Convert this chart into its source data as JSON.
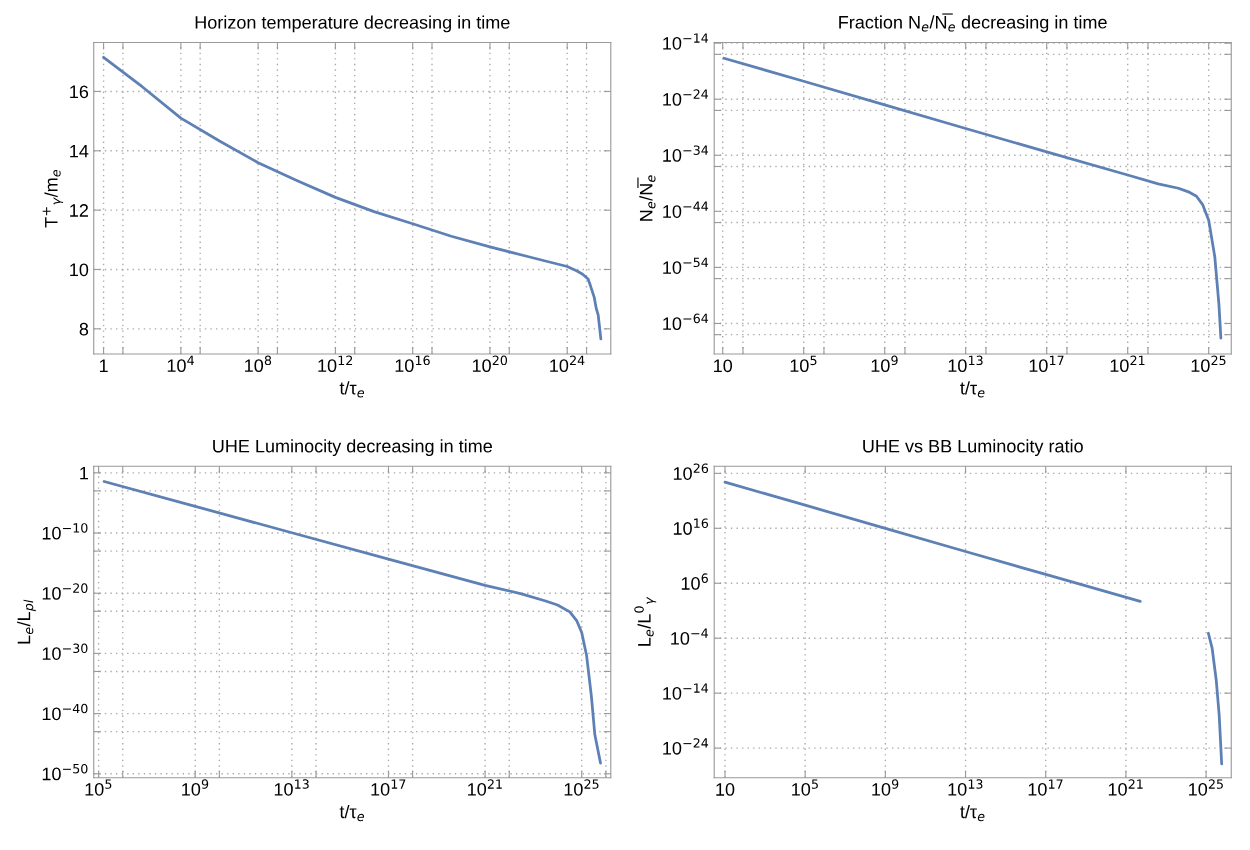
{
  "chart_data": [
    {
      "type": "line",
      "title": "Horizon temperature decreasing in time",
      "xlabel": "t/τ$_{e}$",
      "ylabel": "T$^{+}$$_{γ}$/m$_{e}$",
      "log": "x",
      "grid": true,
      "xlim": [
        0.31,
        1.8e+26
      ],
      "ylim": [
        7.15,
        17.65
      ],
      "xticks": [
        1,
        {
          "value": 10,
          "label": null
        },
        {
          "value": 10000.0,
          "label": "10$^{4}$"
        },
        {
          "value": 100000.0,
          "label": null
        },
        {
          "value": 100000000.0,
          "label": "10$^{8}$"
        },
        {
          "value": 1000000000.0,
          "label": null
        },
        {
          "value": 1000000000000.0,
          "label": "10$^{12}$"
        },
        {
          "value": 10000000000000.0,
          "label": null
        },
        {
          "value": 1e+16,
          "label": "10$^{16}$"
        },
        {
          "value": 1e+17,
          "label": null
        },
        {
          "value": 1e+20,
          "label": "10$^{20}$"
        },
        {
          "value": 1e+21,
          "label": null
        },
        {
          "value": 1e+24,
          "label": "10$^{24}$"
        },
        {
          "value": 1e+25,
          "label": null
        }
      ],
      "yticks": [
        8,
        10,
        12,
        14,
        16
      ],
      "series": [
        {
          "color": "#5e81b5",
          "x": [
            1,
            100.0,
            10000.0,
            1000000.0,
            100000000.0,
            10000000000.0,
            1000000000000.0,
            100000000000000.0,
            1e+16,
            1e+18,
            1e+20,
            1e+22,
            1e+24,
            3.2e+24,
            6.3e+24,
            1.2e+25,
            1.6e+25,
            2.5e+25,
            3.2e+25,
            4e+25,
            5.5e+25
          ],
          "values": [
            17.15,
            16.16,
            15.1,
            14.33,
            13.6,
            13.0,
            12.43,
            11.95,
            11.54,
            11.12,
            10.76,
            10.43,
            10.1,
            9.95,
            9.84,
            9.68,
            9.45,
            9.06,
            8.68,
            8.47,
            7.66
          ]
        }
      ]
    },
    {
      "type": "line",
      "title": "Fraction N$_{e}$/N̅$_{e}$ decreasing in time",
      "xlabel": "t/τ$_{e}$",
      "ylabel": "N$_{e}$/N̅$_{e}$",
      "log": "xy",
      "grid": true,
      "xlim": [
        3.8,
        1.3e+26
      ],
      "ylim": [
        3.5e-70,
        1.3e-14
      ],
      "xticks": [
        10,
        {
          "value": 100.0,
          "label": null
        },
        {
          "value": 100000.0,
          "label": "10$^{5}$"
        },
        {
          "value": 1000000.0,
          "label": null
        },
        {
          "value": 1000000000.0,
          "label": "10$^{9}$"
        },
        {
          "value": 10000000000.0,
          "label": null
        },
        {
          "value": 10000000000000.0,
          "label": "10$^{13}$"
        },
        {
          "value": 100000000000000.0,
          "label": null
        },
        {
          "value": 1e+17,
          "label": "10$^{17}$"
        },
        {
          "value": 1e+18,
          "label": null
        },
        {
          "value": 1e+21,
          "label": "10$^{21}$"
        },
        {
          "value": 1e+22,
          "label": null
        },
        {
          "value": 1e+25,
          "label": "10$^{25}$"
        }
      ],
      "yticks": [
        {
          "value": 1e-14,
          "label": "10$^{−14}$"
        },
        {
          "value": 1e-16,
          "label": null
        },
        {
          "value": 1e-24,
          "label": "10$^{−24}$"
        },
        {
          "value": 1e-26,
          "label": null
        },
        {
          "value": 1e-34,
          "label": "10$^{−34}$"
        },
        {
          "value": 1e-36,
          "label": null
        },
        {
          "value": 1e-44,
          "label": "10$^{−44}$"
        },
        {
          "value": 1e-46,
          "label": null
        },
        {
          "value": 1e-54,
          "label": "10$^{−54}$"
        },
        {
          "value": 1e-56,
          "label": null
        },
        {
          "value": 1e-64,
          "label": "10$^{−64}$"
        },
        {
          "value": 1e-66,
          "label": null
        }
      ],
      "series": [
        {
          "color": "#5e81b5",
          "x": [
            11.5,
            100000.0,
            1000000000.0,
            10000000000000.0,
            1e+17,
            1e+21,
            3.2e+22,
            3.2e+23,
            1e+24,
            2.5e+24,
            5e+24,
            1e+25,
            2e+25,
            3.2e+25,
            4e+25
          ],
          "values": [
            2e-17,
            1.6e-21,
            1e-25,
            6e-30,
            4e-34,
            3e-38,
            8e-40,
            1.3e-40,
            3e-41,
            5e-42,
            1.6e-43,
            2.5e-46,
            8e-53,
            2.5e-61,
            2.5e-67
          ]
        }
      ]
    },
    {
      "type": "line",
      "title": "UHE Luminocity decreasing in time",
      "xlabel": "t/τ$_{e}$",
      "ylabel": "L$_{e}$/L$_{pl}$",
      "log": "xy",
      "grid": true,
      "xlim": [
        63000.0,
        1.6e+26
      ],
      "ylim": [
        2.2e-51,
        12.6
      ],
      "xticks": [
        {
          "value": 100000.0,
          "label": "10$^{5}$"
        },
        {
          "value": 1000000.0,
          "label": null
        },
        {
          "value": 1000000000.0,
          "label": "10$^{9}$"
        },
        {
          "value": 10000000000.0,
          "label": null
        },
        {
          "value": 10000000000000.0,
          "label": "10$^{13}$"
        },
        {
          "value": 100000000000000.0,
          "label": null
        },
        {
          "value": 1e+17,
          "label": "10$^{17}$"
        },
        {
          "value": 1e+18,
          "label": null
        },
        {
          "value": 1e+21,
          "label": "10$^{21}$"
        },
        {
          "value": 1e+22,
          "label": null
        },
        {
          "value": 1e+25,
          "label": "10$^{25}$"
        },
        {
          "value": 1e+26,
          "label": null
        }
      ],
      "yticks": [
        1,
        {
          "value": 0.001,
          "label": null
        },
        {
          "value": 1e-10,
          "label": "10$^{−10}$"
        },
        {
          "value": 1e-13,
          "label": null
        },
        {
          "value": 1e-20,
          "label": "10$^{−20}$"
        },
        {
          "value": 1e-23,
          "label": null
        },
        {
          "value": 1e-30,
          "label": "10$^{−30}$"
        },
        {
          "value": 1e-33,
          "label": null
        },
        {
          "value": 1e-40,
          "label": "10$^{−40}$"
        },
        {
          "value": 1e-43,
          "label": null
        },
        {
          "value": 1e-50,
          "label": "10$^{−50}$"
        }
      ],
      "series": [
        {
          "color": "#5e81b5",
          "x": [
            170000.0,
            1000000000.0,
            10000000000000.0,
            1e+17,
            1e+21,
            3.2e+22,
            3.2e+23,
            1e+24,
            3.2e+24,
            6.3e+24,
            1e+25,
            1.6e+25,
            2.5e+25,
            3.5e+25,
            6e+25
          ],
          "values": [
            0.036,
            2.7e-06,
            1.1e-10,
            4.7e-15,
            2e-19,
            8e-21,
            5e-22,
            1.1e-22,
            8e-24,
            2.5e-25,
            3e-27,
            4e-31,
            1e-37,
            3e-44,
            6e-49
          ]
        }
      ]
    },
    {
      "type": "line",
      "title": "UHE vs BB Luminocity ratio",
      "xlabel": "t/τ$_{e}$",
      "ylabel": "L$_{e}$/L$^{0}$$_{γ}$",
      "log": "xy",
      "grid": true,
      "xlim": [
        2.9,
        1.8e+26
      ],
      "ylim": [
        4e-30,
        2e+27
      ],
      "xticks": [
        10,
        {
          "value": 100000.0,
          "label": "10$^{5}$"
        },
        {
          "value": 1000000000.0,
          "label": "10$^{9}$"
        },
        {
          "value": 10000000000000.0,
          "label": "10$^{13}$"
        },
        {
          "value": 1e+17,
          "label": "10$^{17}$"
        },
        {
          "value": 1e+21,
          "label": "10$^{21}$"
        },
        {
          "value": 1e+25,
          "label": "10$^{25}$"
        }
      ],
      "yticks": [
        {
          "value": 1e-24,
          "label": "10$^{−24}$"
        },
        {
          "value": 1e-14,
          "label": "10$^{−14}$"
        },
        {
          "value": 0.0001,
          "label": "10$^{−4}$"
        },
        {
          "value": 1000000.0,
          "label": "10$^{6}$"
        },
        {
          "value": 1e+16,
          "label": "10$^{16}$"
        },
        {
          "value": 1e+26,
          "label": "10$^{26}$"
        }
      ],
      "series": [
        {
          "color": "#5e81b5",
          "x": [
            10,
            100000.0,
            1000000000.0,
            10000000000000.0,
            1e+17,
            5.2e+21
          ],
          "values": [
            2.5e+24,
            1.6e+20,
            1e+16,
            600000000000.0,
            40000000.0,
            500.0
          ]
        },
        {
          "color": "#5e81b5",
          "x": [
            1.3e+25,
            2e+25,
            3.2e+25,
            4.5e+25,
            6e+25
          ],
          "values": [
            0.0008,
            1.6e-06,
            2.5e-12,
            1e-18,
            1.3e-27
          ]
        }
      ]
    }
  ]
}
